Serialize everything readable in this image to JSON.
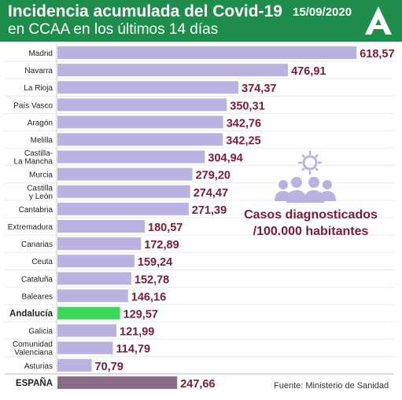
{
  "header": {
    "title": "Incidencia acumulada del Covid-19",
    "subtitle": "en CCAA en los últimos 14 días",
    "date": "15/09/2020"
  },
  "legend": {
    "line1": "Casos diagnosticados",
    "line2": "/100.000 habitantes"
  },
  "source": "Fuente: Ministerio de Sanidad",
  "colors": {
    "header": "#1e8c4a",
    "bar": "#b9b3e2",
    "highlight_bar": "#3dd65a",
    "total_bar": "#8c6a86",
    "value_text": "#7a1c35",
    "icon": "#b9b3e2"
  },
  "icon_name": "people-virus-icon",
  "chart_data": {
    "type": "bar",
    "orientation": "horizontal",
    "title": "Incidencia acumulada del Covid-19",
    "subtitle": "en CCAA en los últimos 14 días",
    "xlim": [
      0,
      650
    ],
    "grid": false,
    "highlight": "Andalucía",
    "categories": [
      "Madrid",
      "Navarra",
      "La Rioja",
      "País Vasco",
      "Aragón",
      "Melilla",
      "Castilla-La Mancha",
      "Murcia",
      "Castilla y León",
      "Cantabria",
      "Extremadura",
      "Canarias",
      "Ceuta",
      "Cataluña",
      "Baleares",
      "Andalucía",
      "Galicia",
      "Comunidad Valenciana",
      "Asturias",
      "ESPAÑA"
    ],
    "label_lines": [
      [
        "Madrid"
      ],
      [
        "Navarra"
      ],
      [
        "La Rioja"
      ],
      [
        "País Vasco"
      ],
      [
        "Aragón"
      ],
      [
        "Melilla"
      ],
      [
        "Castilla-",
        "La Mancha"
      ],
      [
        "Murcia"
      ],
      [
        "Castilla",
        "y León"
      ],
      [
        "Cantabria"
      ],
      [
        "Extremadura"
      ],
      [
        "Canarias"
      ],
      [
        "Ceuta"
      ],
      [
        "Cataluña"
      ],
      [
        "Baleares"
      ],
      [
        "Andalucía"
      ],
      [
        "Galicia"
      ],
      [
        "Comunidad",
        "Valenciana"
      ],
      [
        "Asturias"
      ],
      [
        "ESPAÑA"
      ]
    ],
    "values": [
      618.57,
      476.91,
      374.37,
      350.31,
      342.76,
      342.25,
      304.94,
      279.2,
      274.47,
      271.39,
      180.57,
      172.89,
      159.24,
      152.78,
      146.16,
      129.57,
      121.99,
      114.79,
      70.79,
      247.66
    ],
    "value_labels": [
      "618,57",
      "476,91",
      "374,37",
      "350,31",
      "342,76",
      "342,25",
      "304,94",
      "279,20",
      "274,47",
      "271,39",
      "180,57",
      "172,89",
      "159,24",
      "152,78",
      "146,16",
      "129,57",
      "121,99",
      "114,79",
      "70,79",
      "247,66"
    ]
  }
}
